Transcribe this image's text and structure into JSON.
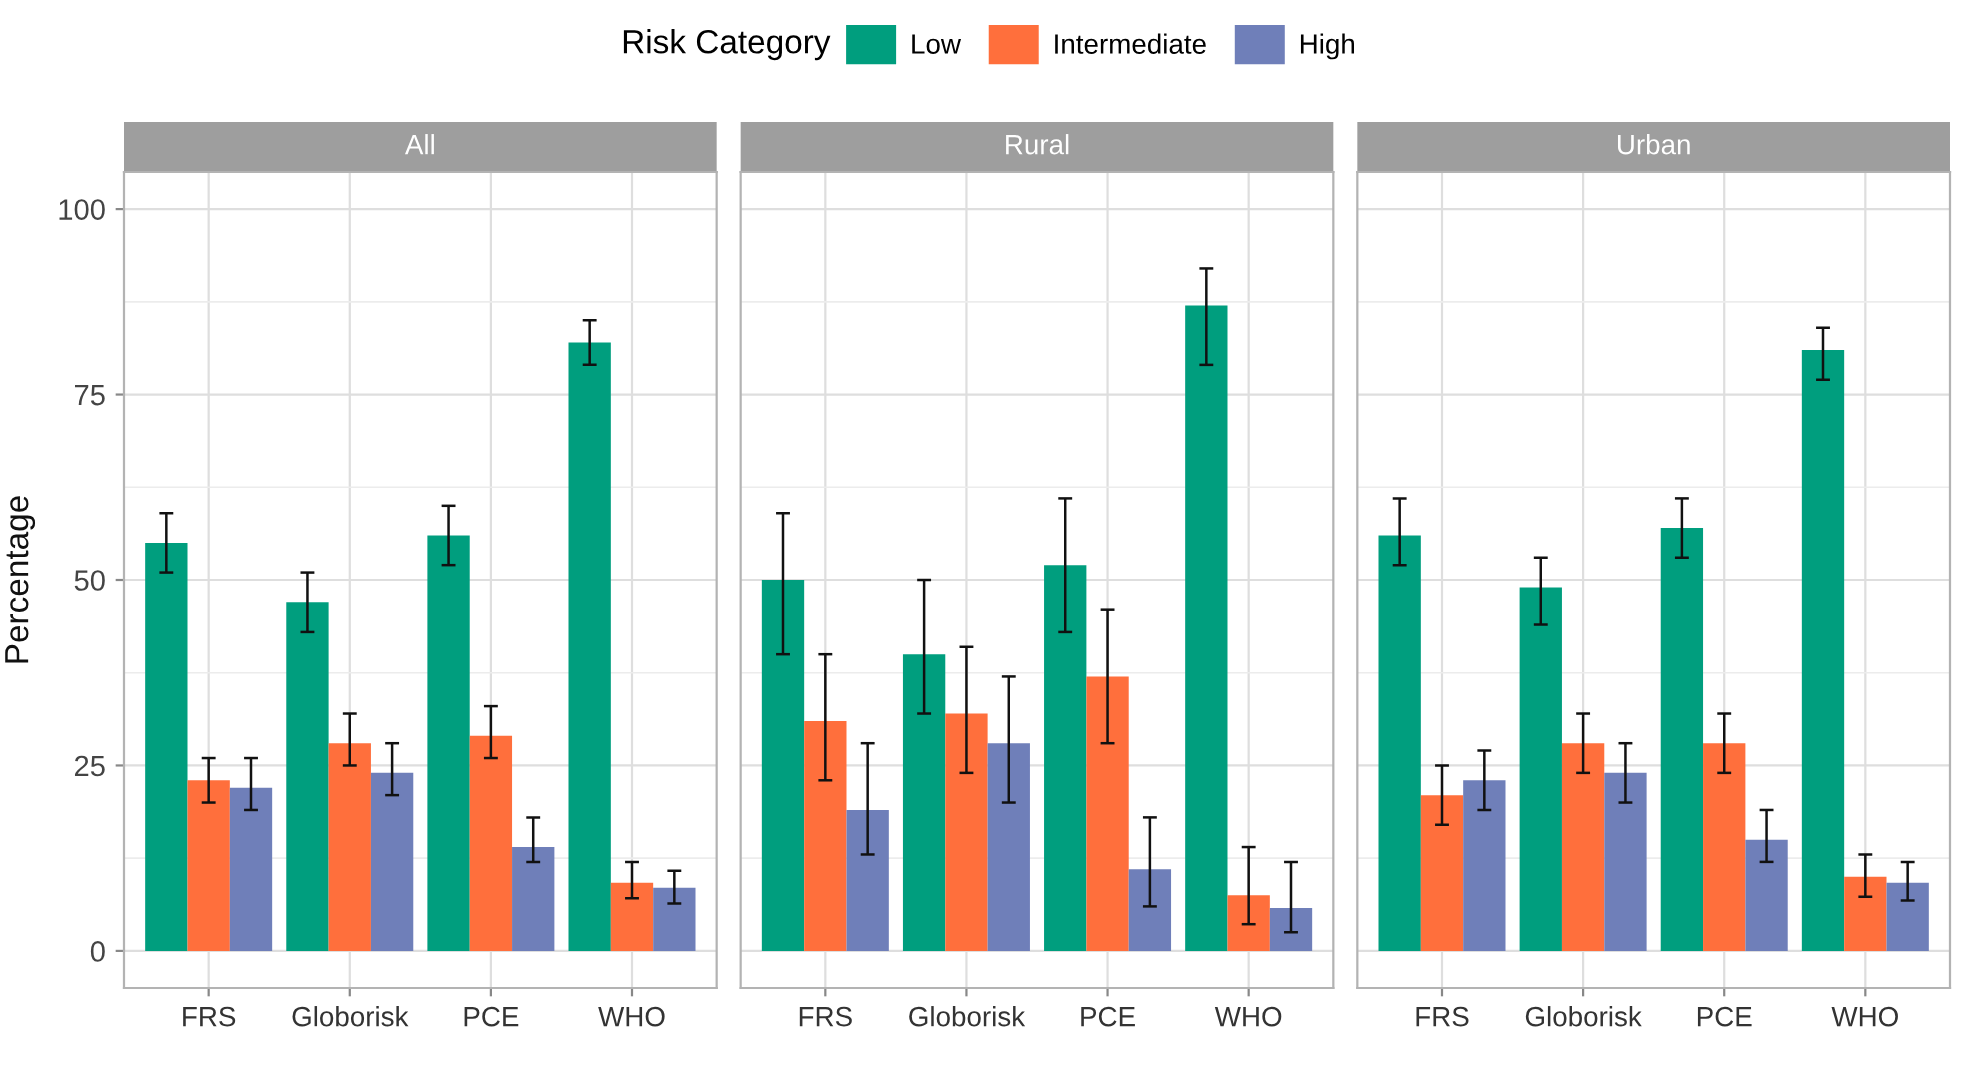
{
  "chart_data": [
    {
      "type": "bar",
      "title": "All",
      "ylabel": "Percentage",
      "legend_title": "Risk Category",
      "legend": "top",
      "grid": true,
      "categories": [
        "FRS",
        "Globorisk",
        "PCE",
        "WHO"
      ],
      "ylim": [
        -5,
        105
      ],
      "yticks": [
        0,
        25,
        50,
        75,
        100
      ],
      "series": [
        {
          "name": "Low",
          "color": "#009e7e",
          "values": [
            55,
            47,
            56,
            82
          ],
          "errors": [
            [
              51,
              59
            ],
            [
              43,
              51
            ],
            [
              52,
              60
            ],
            [
              79,
              85
            ]
          ]
        },
        {
          "name": "Intermediate",
          "color": "#ff6f3c",
          "values": [
            23,
            28,
            29,
            9.2
          ],
          "errors": [
            [
              20,
              26
            ],
            [
              25,
              32
            ],
            [
              26,
              33
            ],
            [
              7.1,
              12
            ]
          ]
        },
        {
          "name": "High",
          "color": "#6f7fb9",
          "values": [
            22,
            24,
            14,
            8.5
          ],
          "errors": [
            [
              19,
              26
            ],
            [
              21,
              28
            ],
            [
              12,
              18
            ],
            [
              6.4,
              10.8
            ]
          ]
        }
      ]
    },
    {
      "type": "bar",
      "title": "Rural",
      "grid": true,
      "tick_labels": "x",
      "categories": [
        "FRS",
        "Globorisk",
        "PCE",
        "WHO"
      ],
      "ylim": [
        -5,
        105
      ],
      "yticks": [
        0,
        25,
        50,
        75,
        100
      ],
      "series": [
        {
          "color": "#009e7e",
          "values": [
            50,
            40,
            52,
            87
          ],
          "errors": [
            [
              40,
              59
            ],
            [
              32,
              50
            ],
            [
              43,
              61
            ],
            [
              79,
              92
            ]
          ]
        },
        {
          "color": "#ff6f3c",
          "values": [
            31,
            32,
            37,
            7.5
          ],
          "errors": [
            [
              23,
              40
            ],
            [
              24,
              41
            ],
            [
              28,
              46
            ],
            [
              3.6,
              14
            ]
          ]
        },
        {
          "color": "#6f7fb9",
          "values": [
            19,
            28,
            11,
            5.8
          ],
          "errors": [
            [
              13,
              28
            ],
            [
              20,
              37
            ],
            [
              6,
              18
            ],
            [
              2.5,
              12
            ]
          ]
        }
      ]
    },
    {
      "type": "bar",
      "title": "Urban",
      "grid": true,
      "tick_labels": "x",
      "categories": [
        "FRS",
        "Globorisk",
        "PCE",
        "WHO"
      ],
      "ylim": [
        -5,
        105
      ],
      "yticks": [
        0,
        25,
        50,
        75,
        100
      ],
      "series": [
        {
          "color": "#009e7e",
          "values": [
            56,
            49,
            57,
            81
          ],
          "errors": [
            [
              52,
              61
            ],
            [
              44,
              53
            ],
            [
              53,
              61
            ],
            [
              77,
              84
            ]
          ]
        },
        {
          "color": "#ff6f3c",
          "values": [
            21,
            28,
            28,
            10
          ],
          "errors": [
            [
              17,
              25
            ],
            [
              24,
              32
            ],
            [
              24,
              32
            ],
            [
              7.3,
              13
            ]
          ]
        },
        {
          "color": "#6f7fb9",
          "values": [
            23,
            24,
            15,
            9.2
          ],
          "errors": [
            [
              19,
              27
            ],
            [
              20,
              28
            ],
            [
              12,
              19
            ],
            [
              6.8,
              12
            ]
          ]
        }
      ]
    }
  ]
}
